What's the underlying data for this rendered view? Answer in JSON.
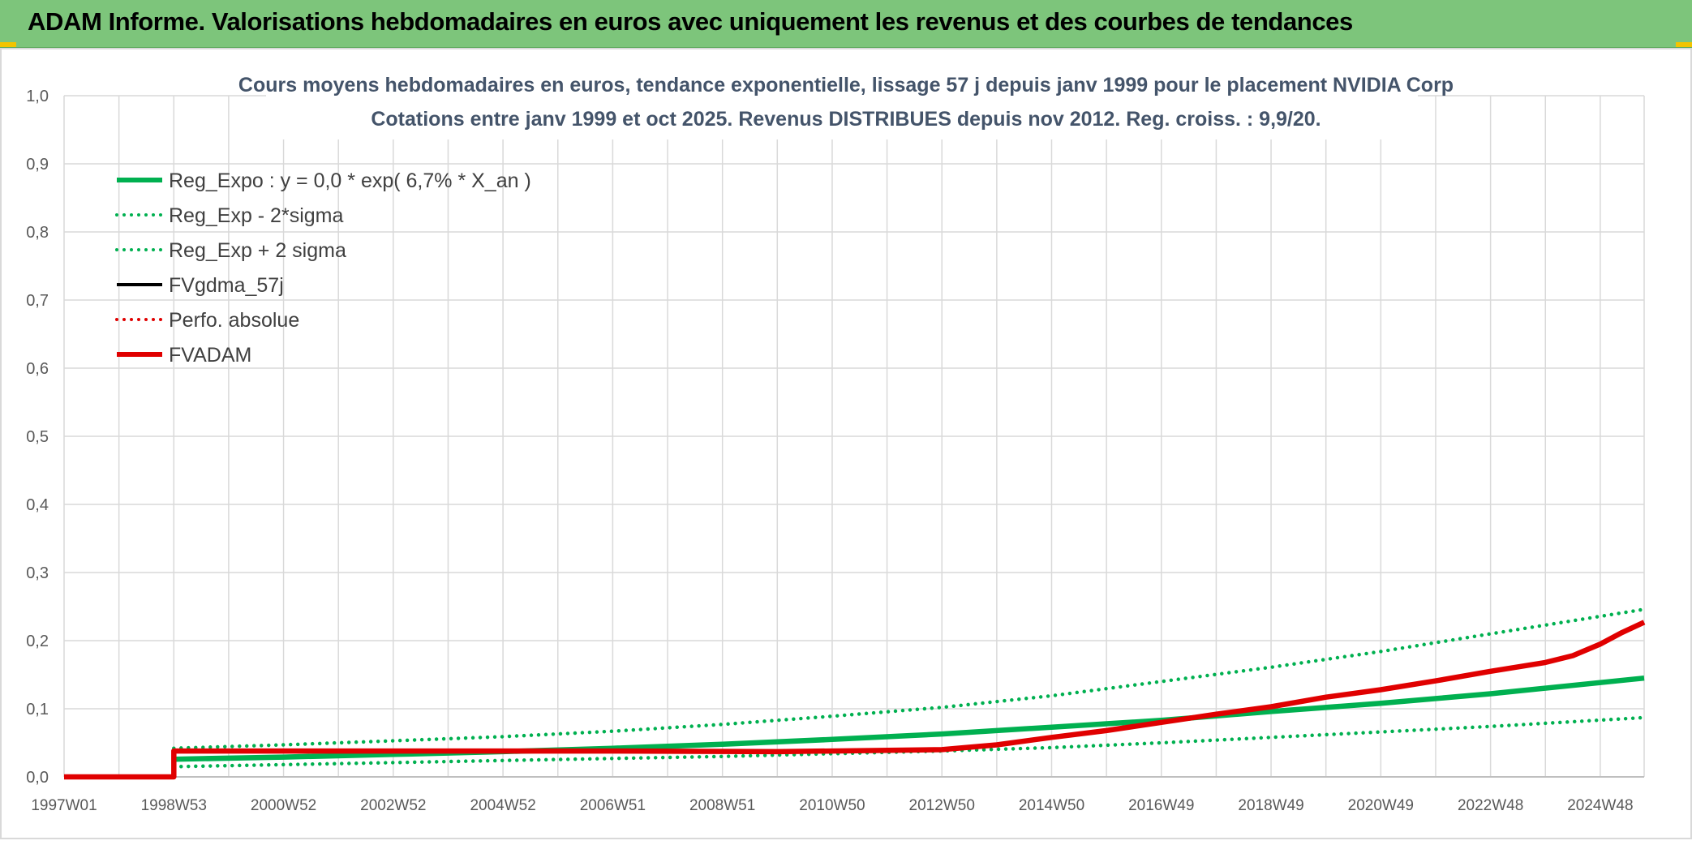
{
  "header": {
    "title": "ADAM Informe. Valorisations hebdomadaires en euros avec uniquement les revenus et des courbes de tendances"
  },
  "colors": {
    "header_bg": "#7dc57b",
    "green": "#00b050",
    "red": "#e00000",
    "black": "#000000",
    "grid": "#d9d9d9",
    "axis_text": "#595959",
    "title_text": "#44546a"
  },
  "chart_data": {
    "type": "line",
    "title": "Cours moyens hebdomadaires en euros, tendance exponentielle, lissage 57 j depuis janv 1999 pour le placement NVIDIA Corp",
    "subtitle": "Cotations entre janv 1999 et oct 2025. Revenus DISTRIBUES depuis nov 2012. Reg. croiss. : 9,9/20.",
    "xlabel": "",
    "ylabel": "",
    "xlim": [
      1997.0,
      2025.8
    ],
    "ylim": [
      0,
      1
    ],
    "x_tick_positions": [
      1997.0,
      1999.0,
      2001.0,
      2003.0,
      2005.0,
      2007.0,
      2009.0,
      2011.0,
      2013.0,
      2015.0,
      2017.0,
      2019.0,
      2021.0,
      2023.0,
      2025.0
    ],
    "x_tick_labels": [
      "1997W01",
      "1998W53",
      "2000W52",
      "2002W52",
      "2004W52",
      "2006W51",
      "2008W51",
      "2010W50",
      "2012W50",
      "2014W50",
      "2016W49",
      "2018W49",
      "2020W49",
      "2022W48",
      "2024W48"
    ],
    "y_ticks": [
      0,
      0.1,
      0.2,
      0.3,
      0.4,
      0.5,
      0.6,
      0.7,
      0.8,
      0.9,
      1.0
    ],
    "y_tick_labels": [
      "0,0",
      "0,1",
      "0,2",
      "0,3",
      "0,4",
      "0,5",
      "0,6",
      "0,7",
      "0,8",
      "0,9",
      "1,0"
    ],
    "grid": true,
    "legend_position": "top-left",
    "series": [
      {
        "name": "Reg_Expo : y = 0,0 * exp( 6,7% *  X_an )",
        "color": "#00b050",
        "style": "solid",
        "weight": "thick",
        "x": [
          1999.0,
          2001.0,
          2003.0,
          2005.0,
          2007.0,
          2009.0,
          2011.0,
          2013.0,
          2015.0,
          2017.0,
          2019.0,
          2021.0,
          2023.0,
          2025.8
        ],
        "y": [
          0.026,
          0.029,
          0.033,
          0.037,
          0.042,
          0.048,
          0.055,
          0.063,
          0.073,
          0.083,
          0.096,
          0.108,
          0.122,
          0.145
        ]
      },
      {
        "name": "Reg_Exp - 2*sigma",
        "color": "#00b050",
        "style": "dotted",
        "weight": "medium",
        "x": [
          1999.0,
          2001.0,
          2003.0,
          2005.0,
          2007.0,
          2009.0,
          2011.0,
          2013.0,
          2015.0,
          2017.0,
          2019.0,
          2021.0,
          2023.0,
          2025.8
        ],
        "y": [
          0.015,
          0.018,
          0.021,
          0.024,
          0.027,
          0.03,
          0.034,
          0.038,
          0.043,
          0.05,
          0.058,
          0.066,
          0.074,
          0.087
        ]
      },
      {
        "name": "Reg_Exp + 2 sigma",
        "color": "#00b050",
        "style": "dotted",
        "weight": "medium",
        "x": [
          1999.0,
          2001.0,
          2003.0,
          2005.0,
          2007.0,
          2009.0,
          2011.0,
          2013.0,
          2015.0,
          2017.0,
          2019.0,
          2021.0,
          2023.0,
          2025.8
        ],
        "y": [
          0.042,
          0.047,
          0.053,
          0.059,
          0.067,
          0.077,
          0.089,
          0.102,
          0.119,
          0.14,
          0.161,
          0.184,
          0.21,
          0.246
        ]
      },
      {
        "name": "FVgdma_57j",
        "color": "#000000",
        "style": "solid",
        "weight": "medium",
        "x": [],
        "y": []
      },
      {
        "name": "Perfo. absolue",
        "color": "#e00000",
        "style": "dotted",
        "weight": "medium",
        "x": [],
        "y": []
      },
      {
        "name": "FVADAM",
        "color": "#e00000",
        "style": "solid",
        "weight": "thick",
        "x": [
          1997.0,
          1999.0,
          1999.0,
          2003.0,
          2007.0,
          2010.0,
          2013.0,
          2014.0,
          2015.0,
          2016.0,
          2017.0,
          2018.0,
          2019.0,
          2020.0,
          2021.0,
          2022.0,
          2023.0,
          2024.0,
          2024.5,
          2025.0,
          2025.4,
          2025.8
        ],
        "y": [
          0.0,
          0.0,
          0.038,
          0.038,
          0.038,
          0.037,
          0.04,
          0.047,
          0.058,
          0.068,
          0.08,
          0.092,
          0.103,
          0.117,
          0.128,
          0.141,
          0.155,
          0.168,
          0.178,
          0.195,
          0.212,
          0.227
        ]
      }
    ]
  }
}
